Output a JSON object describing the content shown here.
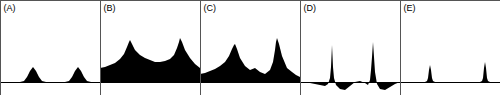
{
  "chart_data": [
    {
      "type": "area",
      "title": "(A)",
      "color": "#000000",
      "xlim": [
        0,
        100
      ],
      "ylim": [
        -13,
        82
      ],
      "tick_labels": false,
      "x": [
        0,
        20,
        24,
        27,
        30,
        33,
        36,
        39,
        42,
        46,
        60,
        65,
        69,
        72,
        75,
        78,
        81,
        84,
        87,
        91,
        100
      ],
      "values": [
        0,
        0,
        1,
        5,
        11,
        15,
        11,
        5,
        1,
        0,
        0,
        0,
        1,
        5,
        11,
        15,
        11,
        5,
        1,
        0,
        0
      ]
    },
    {
      "type": "area",
      "title": "(B)",
      "color": "#000000",
      "xlim": [
        0,
        100
      ],
      "ylim": [
        -13,
        82
      ],
      "tick_labels": false,
      "x": [
        0,
        5,
        10,
        15,
        20,
        24,
        27,
        29,
        30,
        32,
        35,
        40,
        45,
        50,
        55,
        60,
        65,
        70,
        74,
        77,
        79,
        80,
        82,
        85,
        90,
        95,
        100
      ],
      "values": [
        14,
        15,
        17,
        19,
        23,
        28,
        35,
        40,
        42,
        38,
        32,
        27,
        24,
        22,
        20,
        20,
        21,
        23,
        27,
        34,
        40,
        44,
        40,
        32,
        24,
        18,
        14
      ]
    },
    {
      "type": "area",
      "title": "(C)",
      "color": "#000000",
      "xlim": [
        0,
        100
      ],
      "ylim": [
        -13,
        82
      ],
      "tick_labels": false,
      "x": [
        0,
        5,
        10,
        15,
        20,
        25,
        29,
        32,
        34,
        35,
        37,
        40,
        45,
        50,
        55,
        60,
        65,
        70,
        73,
        75,
        76,
        77,
        79,
        82,
        87,
        92,
        96,
        100
      ],
      "values": [
        8,
        9,
        11,
        13,
        16,
        20,
        26,
        33,
        37,
        38,
        33,
        24,
        16,
        12,
        14,
        10,
        8,
        12,
        20,
        32,
        40,
        44,
        38,
        26,
        14,
        10,
        7,
        5
      ]
    },
    {
      "type": "area",
      "title": "(D)",
      "color": "#000000",
      "xlim": [
        0,
        100
      ],
      "ylim": [
        -13,
        82
      ],
      "tick_labels": false,
      "x": [
        0,
        10,
        20,
        25,
        28,
        30,
        31,
        32,
        33,
        34,
        36,
        40,
        45,
        50,
        55,
        60,
        65,
        68,
        70,
        71,
        72,
        73,
        74,
        75,
        77,
        80,
        85,
        90,
        95,
        100
      ],
      "values": [
        0,
        -1,
        -3,
        -4,
        -2,
        4,
        15,
        37,
        15,
        4,
        -3,
        -7,
        -8,
        -4,
        0,
        1,
        -1,
        -3,
        2,
        12,
        25,
        40,
        25,
        10,
        -2,
        -7,
        -8,
        -5,
        -2,
        0
      ]
    },
    {
      "type": "area",
      "title": "(E)",
      "color": "#000000",
      "xlim": [
        0,
        100
      ],
      "ylim": [
        -13,
        82
      ],
      "tick_labels": false,
      "x": [
        0,
        25,
        27,
        28,
        29,
        30,
        31,
        32,
        33,
        35,
        40,
        60,
        80,
        82,
        83,
        84,
        85,
        86,
        87,
        88,
        90,
        100
      ],
      "values": [
        0,
        0,
        1,
        4,
        12,
        17,
        12,
        4,
        1,
        0,
        -1,
        -1,
        0,
        1,
        4,
        14,
        20,
        14,
        4,
        1,
        0,
        0
      ]
    }
  ]
}
